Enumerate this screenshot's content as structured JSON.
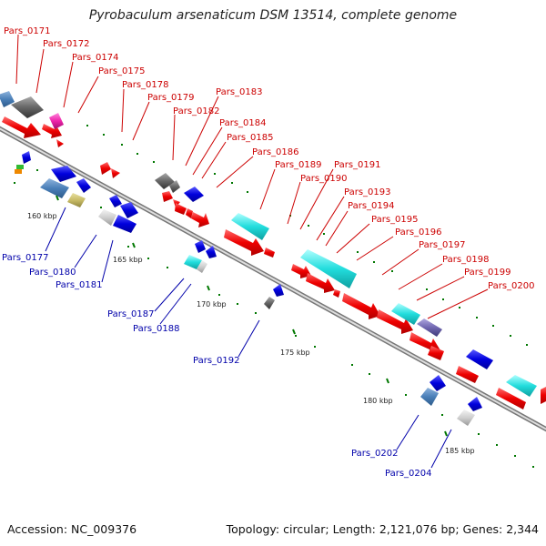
{
  "title": "Pyrobaculum arsenaticum DSM 13514, complete genome",
  "footer": {
    "accession": "Accession: NC_009376",
    "summary": "Topology: circular; Length: 2,121,076 bp; Genes: 2,344"
  },
  "colors": {
    "top_labels": "#cc0000",
    "bottom_labels": "#0000aa",
    "backbone": "#8a8a8a",
    "tick": "#007700"
  },
  "ticks": [
    "160 kbp",
    "165 kbp",
    "170 kbp",
    "175 kbp",
    "180 kbp",
    "185 kbp"
  ],
  "top_labels": [
    "Pars_0171",
    "Pars_0172",
    "Pars_0174",
    "Pars_0175",
    "Pars_0178",
    "Pars_0179",
    "Pars_0182",
    "Pars_0183",
    "Pars_0184",
    "Pars_0185",
    "Pars_0186",
    "Pars_0189",
    "Pars_0190",
    "Pars_0191",
    "Pars_0193",
    "Pars_0194",
    "Pars_0195",
    "Pars_0196",
    "Pars_0197",
    "Pars_0198",
    "Pars_0199",
    "Pars_0200"
  ],
  "bottom_labels": [
    "Pars_0177",
    "Pars_0180",
    "Pars_0181",
    "Pars_0187",
    "Pars_0188",
    "Pars_0192",
    "Pars_0202",
    "Pars_0204"
  ]
}
